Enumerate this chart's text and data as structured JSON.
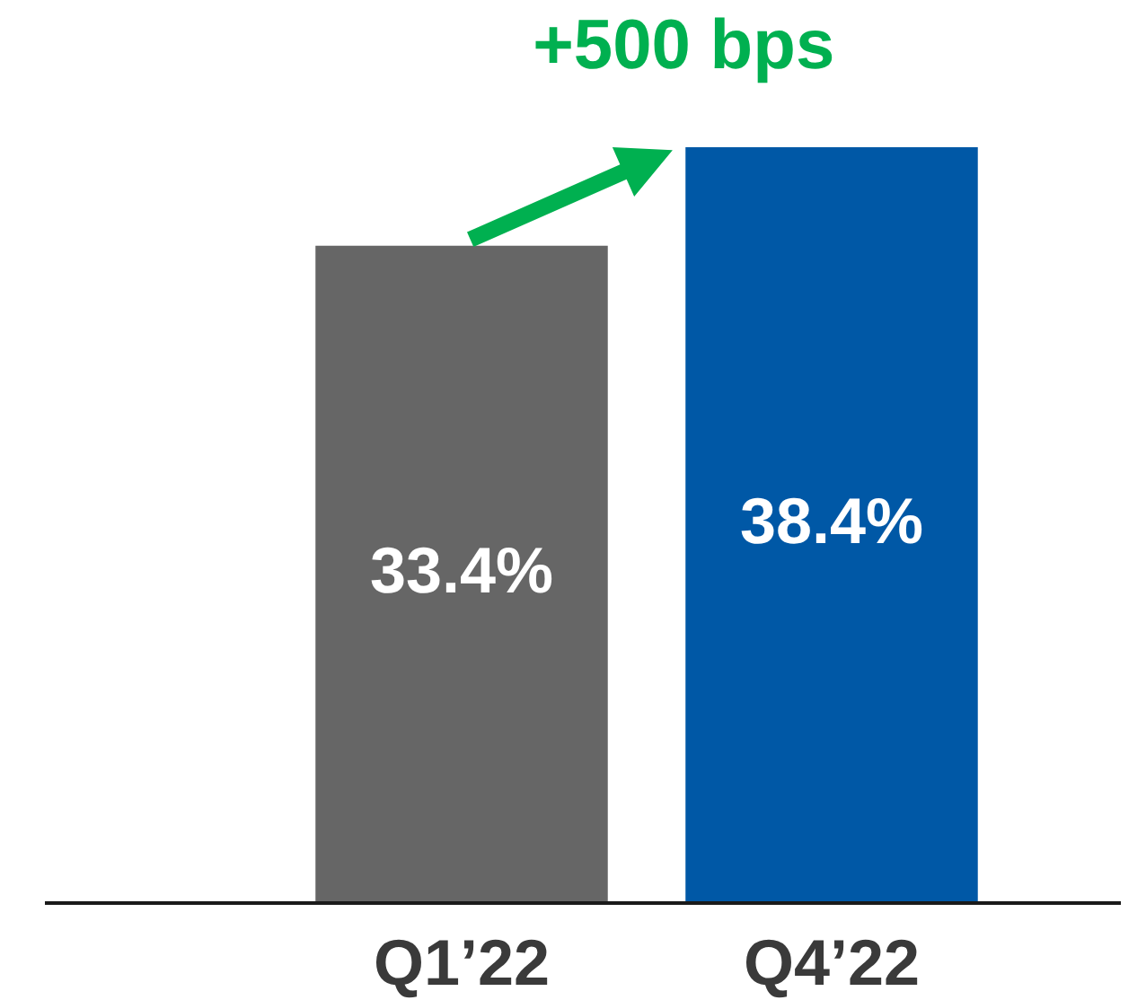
{
  "chart_data": {
    "type": "bar",
    "categories": [
      "Q1’22",
      "Q4’22"
    ],
    "values": [
      33.4,
      38.4
    ],
    "colors": [
      "#666666",
      "#0058a6"
    ],
    "value_labels": [
      "33.4%",
      "38.4%"
    ],
    "tick_labels": "x",
    "annotations": [
      "+500 bps"
    ]
  }
}
